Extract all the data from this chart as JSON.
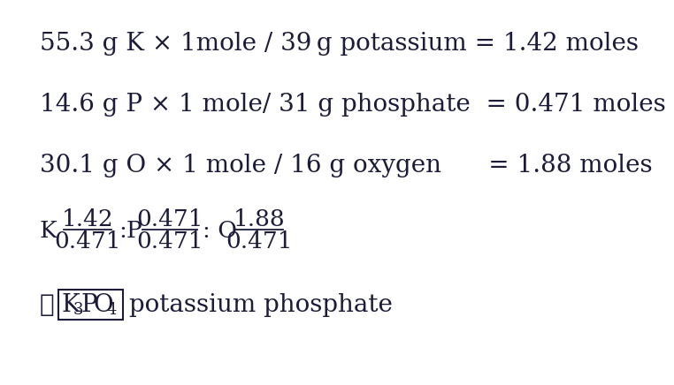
{
  "bg_color": "#ffffff",
  "text_color": "#1c1c3a",
  "line1": "55.3 g K × 1mole / 39 g potassium = 1.42 moles",
  "line2": "14.6 g P × 1 mole/ 31 g phosphate  = 0.471 moles",
  "line3": "30.1 g O × 1 mole / 16 g oxygen      = 1.88 moles",
  "therefore_symbol": "∴",
  "formula_label": "potassium phosphate",
  "font_size_main": 20,
  "font_size_ratio": 19,
  "font_size_sub": 13,
  "font_family": "DejaVu Serif"
}
